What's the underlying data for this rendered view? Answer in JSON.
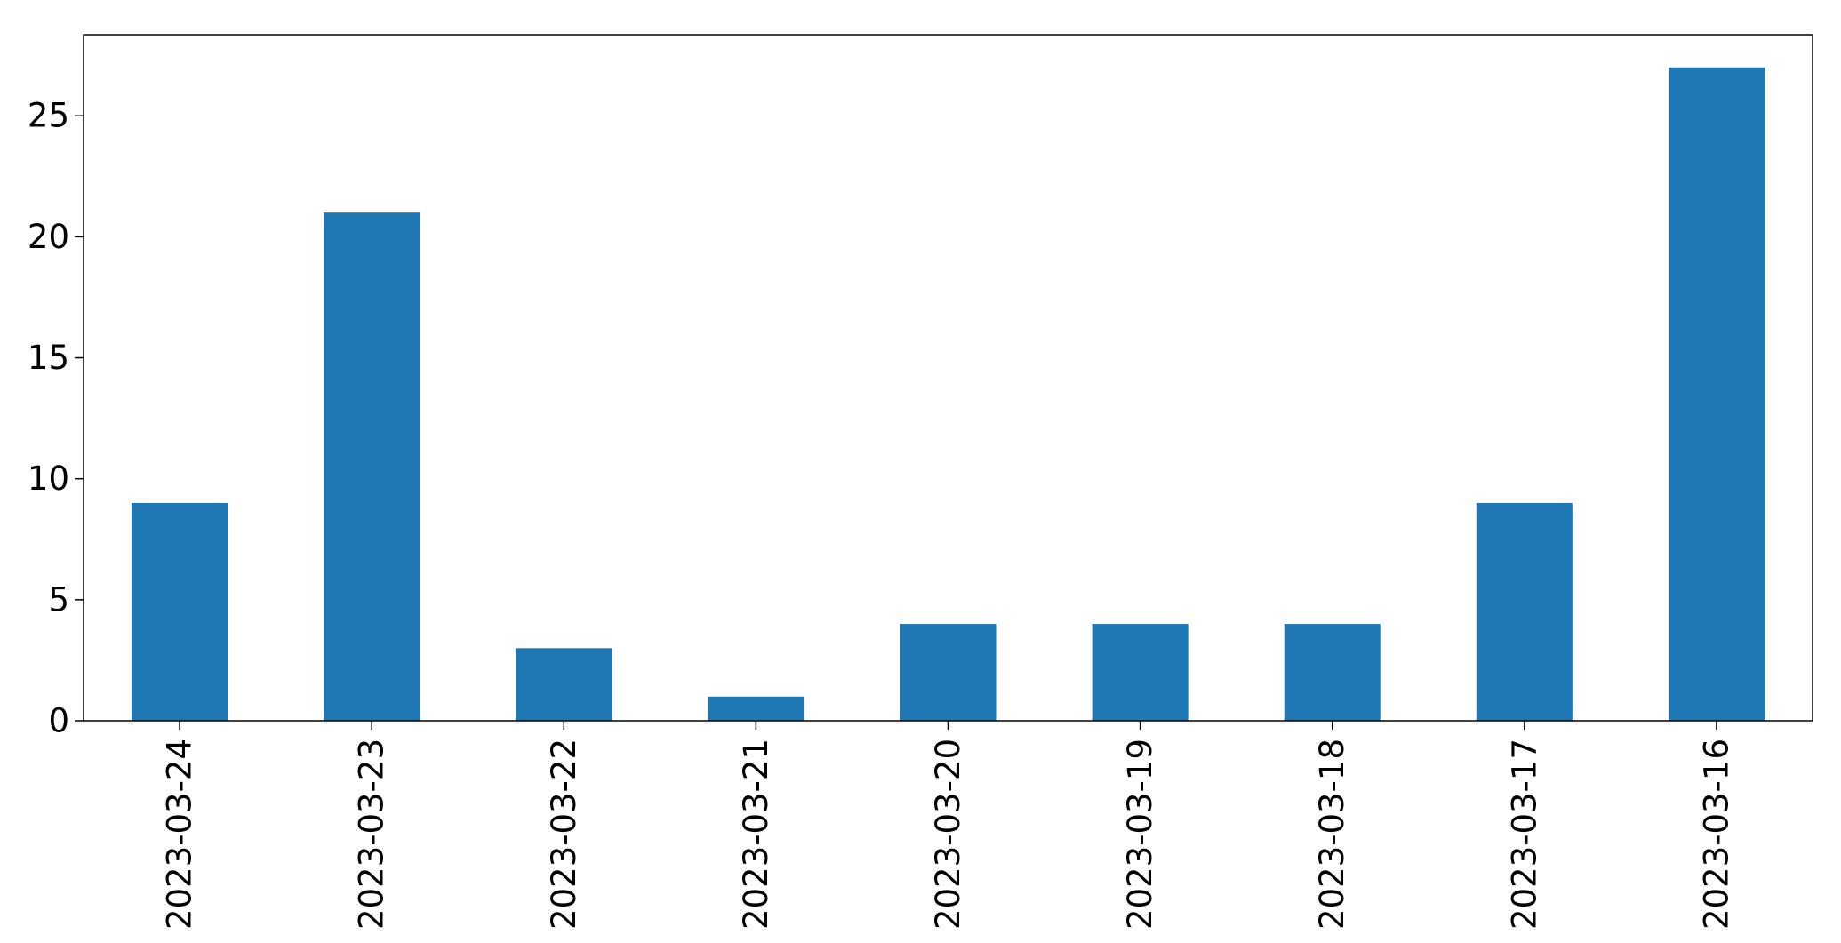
{
  "chart_data": {
    "type": "bar",
    "categories": [
      "2023-03-24",
      "2023-03-23",
      "2023-03-22",
      "2023-03-21",
      "2023-03-20",
      "2023-03-19",
      "2023-03-18",
      "2023-03-17",
      "2023-03-16"
    ],
    "values": [
      9,
      21,
      3,
      1,
      4,
      4,
      4,
      9,
      27
    ],
    "title": "",
    "xlabel": "",
    "ylabel": "",
    "ylim": [
      0,
      28.35
    ],
    "yticks": [
      0,
      5,
      10,
      15,
      20,
      25
    ],
    "ytick_labels": [
      "0",
      "5",
      "10",
      "15",
      "20",
      "25"
    ],
    "bar_color": "#1f77b4",
    "grid": false,
    "legend": "none",
    "x_tick_rotation": "vertical"
  }
}
